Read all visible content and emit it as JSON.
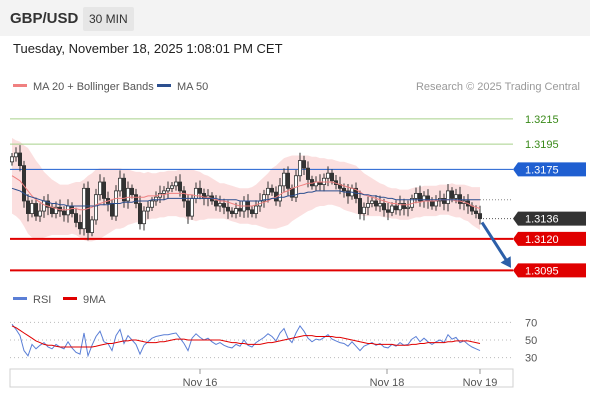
{
  "header": {
    "pair": "GBP/USD",
    "timeframe": "30 MIN",
    "timestamp": "Tuesday, November 18, 2025 1:08:01 PM CET"
  },
  "chart_data": {
    "type": "candlestick",
    "legend": [
      {
        "label": "MA 20 + Bollinger Bands",
        "color": "#f08080"
      },
      {
        "label": "MA 50",
        "color": "#2c4f8f"
      }
    ],
    "copyright": "Research © 2025 Trading Central",
    "x_ticks": [
      "Nov 16",
      "Nov 18",
      "Nov 19"
    ],
    "ylim": [
      1.3085,
      1.323
    ],
    "levels": [
      {
        "label": "1.3215",
        "value": 1.3215,
        "kind": "target",
        "color": "#a6d18a",
        "label_color": "#3a8a1a"
      },
      {
        "label": "1.3195",
        "value": 1.3195,
        "kind": "target",
        "color": "#a6d18a",
        "label_color": "#3a8a1a"
      },
      {
        "label": "1.3175",
        "value": 1.3175,
        "kind": "pivot",
        "color": "#1f5fd1",
        "label_color": "#ffffff",
        "badge_color": "#1f5fd1"
      },
      {
        "label": "1.3136",
        "value": 1.3136,
        "kind": "last",
        "color": "#555555",
        "label_color": "#ffffff",
        "badge_color": "#333333"
      },
      {
        "label": "1.3120",
        "value": 1.312,
        "kind": "support",
        "color": "#e00000",
        "label_color": "#ffffff",
        "badge_color": "#e00000"
      },
      {
        "label": "1.3095",
        "value": 1.3095,
        "kind": "support",
        "color": "#e00000",
        "label_color": "#ffffff",
        "badge_color": "#e00000"
      }
    ],
    "forecast_arrow": {
      "from": 1.3133,
      "to": 1.3097,
      "color": "#2c5fa8"
    },
    "close": [
      1.3185,
      1.3188,
      1.3178,
      1.315,
      1.314,
      1.3148,
      1.3138,
      1.3142,
      1.315,
      1.3145,
      1.314,
      1.3145,
      1.3142,
      1.3139,
      1.3146,
      1.314,
      1.3133,
      1.3128,
      1.316,
      1.3125,
      1.3135,
      1.3155,
      1.3165,
      1.3152,
      1.3148,
      1.3138,
      1.3158,
      1.3168,
      1.315,
      1.316,
      1.3155,
      1.3148,
      1.3132,
      1.3142,
      1.3145,
      1.315,
      1.3153,
      1.3156,
      1.3158,
      1.316,
      1.3162,
      1.3165,
      1.3158,
      1.315,
      1.3138,
      1.3152,
      1.316,
      1.3156,
      1.3152,
      1.3154,
      1.315,
      1.3146,
      1.3148,
      1.3145,
      1.3142,
      1.314,
      1.3144,
      1.3142,
      1.315,
      1.3143,
      1.314,
      1.3146,
      1.315,
      1.3155,
      1.316,
      1.3157,
      1.315,
      1.3162,
      1.3172,
      1.316,
      1.3153,
      1.317,
      1.3182,
      1.3176,
      1.3167,
      1.3162,
      1.3165,
      1.3163,
      1.3168,
      1.3172,
      1.3166,
      1.3163,
      1.316,
      1.3158,
      1.3154,
      1.316,
      1.3152,
      1.314,
      1.3145,
      1.3148,
      1.315,
      1.3146,
      1.3148,
      1.3143,
      1.3141,
      1.3146,
      1.3143,
      1.3148,
      1.3144,
      1.3145,
      1.3152,
      1.3156,
      1.315,
      1.3154,
      1.315,
      1.3146,
      1.315,
      1.3152,
      1.3148,
      1.3158,
      1.3152,
      1.3155,
      1.3148,
      1.315,
      1.3146,
      1.3142,
      1.314,
      1.3136
    ],
    "ma20": [
      1.317,
      1.3168,
      1.3166,
      1.3162,
      1.3158,
      1.3154,
      1.3151,
      1.3149,
      1.3147,
      1.3146,
      1.3145,
      1.3144,
      1.3143,
      1.3143,
      1.3143,
      1.3144,
      1.3144,
      1.3143,
      1.3143,
      1.3144,
      1.3145,
      1.3147,
      1.3148,
      1.3149,
      1.315,
      1.3151,
      1.3152,
      1.3152,
      1.3152,
      1.3153,
      1.3153,
      1.3153,
      1.3153,
      1.3153,
      1.3154,
      1.3154,
      1.3154,
      1.3155,
      1.3155,
      1.3156,
      1.3156,
      1.3156,
      1.3156,
      1.3156,
      1.3155,
      1.3155,
      1.3154,
      1.3154,
      1.3153,
      1.3153,
      1.3152,
      1.3151,
      1.315,
      1.315,
      1.3149,
      1.3148,
      1.3147,
      1.3146,
      1.3146,
      1.3146,
      1.3146,
      1.3147,
      1.3148,
      1.3149,
      1.315,
      1.3152,
      1.3153,
      1.3155,
      1.3157,
      1.3158,
      1.316,
      1.3161,
      1.3162,
      1.3163,
      1.3164,
      1.3164,
      1.3165,
      1.3165,
      1.3165,
      1.3165,
      1.3165,
      1.3164,
      1.3163,
      1.3162,
      1.3161,
      1.316,
      1.3159,
      1.3157,
      1.3155,
      1.3154,
      1.3153,
      1.3152,
      1.3151,
      1.315,
      1.3149,
      1.3148,
      1.3148,
      1.3147,
      1.3147,
      1.3147,
      1.3148,
      1.3149,
      1.3149,
      1.315,
      1.315,
      1.315,
      1.315,
      1.3151,
      1.3151,
      1.3151,
      1.3151,
      1.315,
      1.315,
      1.3149,
      1.3148,
      1.3146,
      1.3145,
      1.3144
    ],
    "bb_width": [
      0.003,
      0.003,
      0.0031,
      0.0032,
      0.0034,
      0.0033,
      0.0031,
      0.0029,
      0.0026,
      0.0024,
      0.0022,
      0.0021,
      0.002,
      0.002,
      0.002,
      0.002,
      0.0021,
      0.0022,
      0.0024,
      0.0026,
      0.0027,
      0.0028,
      0.0028,
      0.0027,
      0.0026,
      0.0025,
      0.0024,
      0.0024,
      0.0023,
      0.0022,
      0.0021,
      0.002,
      0.002,
      0.0019,
      0.0019,
      0.0018,
      0.0018,
      0.0018,
      0.0018,
      0.0018,
      0.0018,
      0.0018,
      0.0019,
      0.0019,
      0.002,
      0.002,
      0.002,
      0.0019,
      0.0018,
      0.0017,
      0.0016,
      0.0015,
      0.0014,
      0.0014,
      0.0014,
      0.0014,
      0.0014,
      0.0014,
      0.0014,
      0.0014,
      0.0015,
      0.0016,
      0.0018,
      0.002,
      0.0022,
      0.0024,
      0.0025,
      0.0026,
      0.0027,
      0.0027,
      0.0026,
      0.0025,
      0.0024,
      0.0023,
      0.0022,
      0.0021,
      0.002,
      0.0019,
      0.0019,
      0.0018,
      0.0018,
      0.0018,
      0.0018,
      0.0019,
      0.0019,
      0.0019,
      0.0019,
      0.0018,
      0.0017,
      0.0016,
      0.0015,
      0.0014,
      0.0013,
      0.0013,
      0.0012,
      0.0012,
      0.0012,
      0.0012,
      0.0012,
      0.0012,
      0.0012,
      0.0012,
      0.0012,
      0.0012,
      0.0012,
      0.0012,
      0.0012,
      0.0012,
      0.0012,
      0.0012,
      0.0013,
      0.0013,
      0.0013,
      0.0014,
      0.0014,
      0.0015,
      0.0016,
      0.0017
    ],
    "ma50": [
      1.316,
      1.3159,
      1.3158,
      1.3156,
      1.3154,
      1.3153,
      1.3152,
      1.3151,
      1.315,
      1.3149,
      1.3148,
      1.3148,
      1.3147,
      1.3147,
      1.3146,
      1.3146,
      1.3146,
      1.3146,
      1.3146,
      1.3146,
      1.3146,
      1.3146,
      1.3147,
      1.3147,
      1.3147,
      1.3148,
      1.3148,
      1.3148,
      1.3149,
      1.3149,
      1.3149,
      1.315,
      1.315,
      1.315,
      1.315,
      1.3151,
      1.3151,
      1.3151,
      1.3151,
      1.3152,
      1.3152,
      1.3152,
      1.3152,
      1.3152,
      1.3152,
      1.3152,
      1.3152,
      1.3152,
      1.3152,
      1.3152,
      1.3152,
      1.3152,
      1.3151,
      1.3151,
      1.3151,
      1.3151,
      1.3151,
      1.315,
      1.315,
      1.315,
      1.315,
      1.315,
      1.315,
      1.3151,
      1.3151,
      1.3152,
      1.3152,
      1.3153,
      1.3153,
      1.3154,
      1.3154,
      1.3155,
      1.3156,
      1.3156,
      1.3157,
      1.3157,
      1.3158,
      1.3158,
      1.3158,
      1.3158,
      1.3158,
      1.3158,
      1.3158,
      1.3157,
      1.3157,
      1.3157,
      1.3156,
      1.3156,
      1.3155,
      1.3155,
      1.3154,
      1.3154,
      1.3153,
      1.3153,
      1.3152,
      1.3152,
      1.3151,
      1.3151,
      1.3151,
      1.3151,
      1.3151,
      1.3151,
      1.3151,
      1.3151,
      1.3151,
      1.3151,
      1.3151,
      1.3151,
      1.3151,
      1.3151,
      1.3151,
      1.3151,
      1.3151,
      1.3151,
      1.3151,
      1.3151,
      1.3151,
      1.3151
    ],
    "rsi_panel": {
      "legend": [
        {
          "label": "RSI",
          "color": "#5b7fd6"
        },
        {
          "label": "9MA",
          "color": "#e00000"
        }
      ],
      "ylim": [
        25,
        75
      ],
      "ticks": [
        {
          "label": "70",
          "value": 70
        },
        {
          "label": "50",
          "value": 50
        },
        {
          "label": "30",
          "value": 30
        }
      ],
      "rsi": [
        68,
        62,
        55,
        38,
        32,
        45,
        40,
        44,
        47,
        42,
        40,
        45,
        42,
        40,
        48,
        41,
        36,
        34,
        58,
        32,
        44,
        54,
        60,
        48,
        46,
        38,
        55,
        62,
        46,
        55,
        50,
        45,
        34,
        44,
        48,
        52,
        54,
        55,
        56,
        56,
        57,
        58,
        52,
        46,
        38,
        52,
        57,
        53,
        50,
        52,
        48,
        45,
        47,
        44,
        42,
        41,
        45,
        43,
        50,
        44,
        42,
        47,
        50,
        53,
        57,
        54,
        49,
        58,
        63,
        52,
        47,
        58,
        66,
        60,
        52,
        48,
        51,
        50,
        53,
        56,
        51,
        49,
        47,
        46,
        43,
        48,
        43,
        38,
        43,
        45,
        47,
        44,
        46,
        42,
        41,
        45,
        43,
        47,
        44,
        45,
        51,
        54,
        48,
        52,
        48,
        45,
        48,
        50,
        47,
        56,
        51,
        53,
        47,
        49,
        45,
        42,
        40,
        38
      ],
      "ma9": [
        66,
        64,
        61,
        58,
        55,
        52,
        49,
        47,
        45,
        44,
        44,
        43,
        42,
        42,
        42,
        42,
        42,
        42,
        42,
        42,
        42,
        43,
        44,
        45,
        46,
        46,
        47,
        48,
        49,
        49,
        50,
        50,
        49,
        48,
        47,
        47,
        47,
        48,
        48,
        49,
        50,
        51,
        51,
        51,
        50,
        50,
        50,
        50,
        50,
        50,
        50,
        50,
        50,
        49,
        48,
        47,
        47,
        46,
        46,
        45,
        45,
        45,
        45,
        46,
        47,
        47,
        48,
        49,
        50,
        51,
        52,
        53,
        54,
        55,
        55,
        55,
        54,
        54,
        54,
        54,
        54,
        53,
        53,
        52,
        51,
        50,
        49,
        48,
        47,
        46,
        46,
        45,
        45,
        45,
        45,
        45,
        44,
        44,
        44,
        44,
        45,
        45,
        46,
        46,
        47,
        47,
        47,
        47,
        47,
        48,
        48,
        49,
        49,
        49,
        49,
        48,
        47,
        46
      ]
    }
  }
}
